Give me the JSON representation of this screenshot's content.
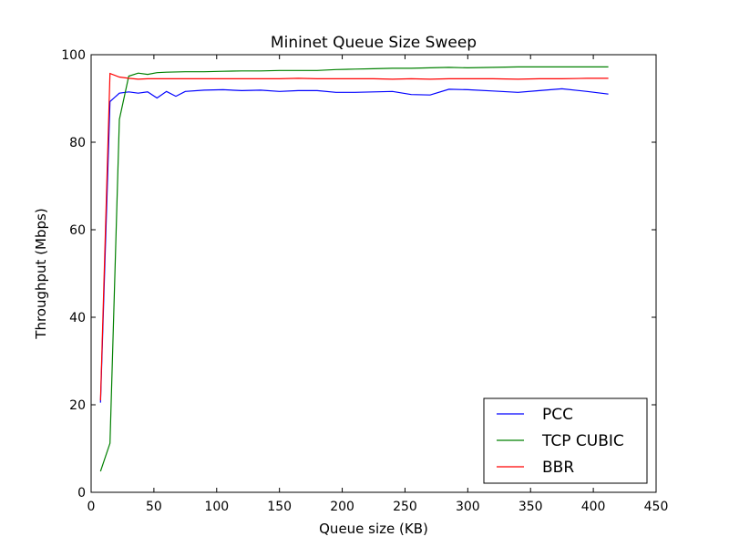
{
  "chart_data": {
    "type": "line",
    "title": "Mininet Queue Size Sweep",
    "xlabel": "Queue size (KB)",
    "ylabel": "Throughput (Mbps)",
    "xlim": [
      0,
      450
    ],
    "ylim": [
      0,
      100
    ],
    "xticks": [
      0,
      50,
      100,
      150,
      200,
      250,
      300,
      350,
      400,
      450
    ],
    "yticks": [
      0,
      20,
      40,
      60,
      80,
      100
    ],
    "grid": false,
    "legend_position": "lower-right",
    "series": [
      {
        "name": "PCC",
        "color": "#0000ff",
        "x": [
          7.5,
          15,
          22.5,
          30,
          37.5,
          45,
          52.5,
          60,
          67.5,
          75,
          90,
          105,
          120,
          135,
          150,
          165,
          180,
          195,
          210,
          225,
          240,
          255,
          270,
          285,
          300,
          320,
          340,
          357,
          375,
          395,
          412
        ],
        "y": [
          20.5,
          89.3,
          91.2,
          91.5,
          91.2,
          91.5,
          90.1,
          91.6,
          90.5,
          91.6,
          91.9,
          92.0,
          91.8,
          91.9,
          91.6,
          91.8,
          91.8,
          91.4,
          91.4,
          91.5,
          91.6,
          90.9,
          90.8,
          92.1,
          92.0,
          91.7,
          91.4,
          91.8,
          92.2,
          91.6,
          91.0
        ]
      },
      {
        "name": "TCP CUBIC",
        "color": "#008000",
        "x": [
          7.5,
          15,
          22.5,
          30,
          37.5,
          45,
          52.5,
          60,
          75,
          90,
          105,
          120,
          135,
          150,
          165,
          180,
          195,
          210,
          225,
          240,
          255,
          270,
          285,
          300,
          320,
          340,
          357,
          375,
          395,
          412
        ],
        "y": [
          4.8,
          11.2,
          85.2,
          95.1,
          95.8,
          95.5,
          95.9,
          96.0,
          96.1,
          96.1,
          96.2,
          96.3,
          96.3,
          96.4,
          96.4,
          96.4,
          96.6,
          96.7,
          96.8,
          96.9,
          96.9,
          97.0,
          97.1,
          97.0,
          97.1,
          97.2,
          97.2,
          97.2,
          97.2,
          97.2
        ]
      },
      {
        "name": "BBR",
        "color": "#ff0000",
        "x": [
          7.5,
          15,
          22.5,
          30,
          37.5,
          45,
          52.5,
          60,
          75,
          90,
          105,
          120,
          135,
          150,
          165,
          180,
          195,
          210,
          225,
          240,
          255,
          270,
          285,
          300,
          320,
          340,
          357,
          375,
          395,
          412
        ],
        "y": [
          21.0,
          95.7,
          94.9,
          94.6,
          94.4,
          94.5,
          94.5,
          94.5,
          94.5,
          94.5,
          94.5,
          94.5,
          94.5,
          94.5,
          94.6,
          94.5,
          94.5,
          94.5,
          94.5,
          94.4,
          94.5,
          94.4,
          94.5,
          94.5,
          94.5,
          94.4,
          94.5,
          94.5,
          94.6,
          94.6
        ]
      }
    ]
  }
}
